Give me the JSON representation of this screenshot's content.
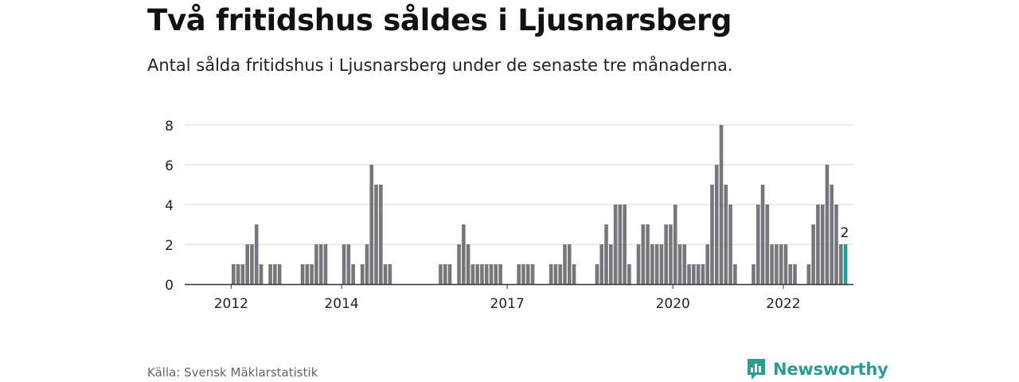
{
  "header": {
    "title": "Två fritidshus såldes i Ljusnarsberg",
    "subtitle": "Antal sålda fritidshus i Ljusnarsberg under de senaste tre månaderna."
  },
  "footer": {
    "source": "Källa: Svensk Mäklarstatistik",
    "brand": "Newsworthy",
    "brand_icon": "newsworthy-logo-icon"
  },
  "colors": {
    "bar": "#76767c",
    "highlight": "#1aa39a",
    "grid": "#d9d9d9",
    "axis": "#333333",
    "brand": "#2a9d94"
  },
  "chart_data": {
    "type": "bar",
    "title": "",
    "xlabel": "",
    "ylabel": "",
    "ylim": [
      0,
      8
    ],
    "yticks": [
      0,
      2,
      4,
      6,
      8
    ],
    "xticks": [
      "2012",
      "2014",
      "2017",
      "2020",
      "2022"
    ],
    "grid": true,
    "highlight_label": "2",
    "start_month": "2011-10",
    "values": [
      0,
      0,
      0,
      1,
      1,
      1,
      2,
      2,
      3,
      1,
      0,
      1,
      1,
      1,
      0,
      0,
      0,
      0,
      1,
      1,
      1,
      2,
      2,
      2,
      0,
      0,
      0,
      2,
      2,
      1,
      0,
      1,
      2,
      6,
      5,
      5,
      1,
      1,
      0,
      0,
      0,
      0,
      0,
      0,
      0,
      0,
      0,
      0,
      1,
      1,
      1,
      0,
      2,
      3,
      2,
      1,
      1,
      1,
      1,
      1,
      1,
      1,
      0,
      0,
      0,
      1,
      1,
      1,
      1,
      0,
      0,
      0,
      1,
      1,
      1,
      2,
      2,
      1,
      0,
      0,
      0,
      0,
      1,
      2,
      3,
      2,
      4,
      4,
      4,
      1,
      0,
      2,
      3,
      3,
      2,
      2,
      2,
      3,
      3,
      4,
      2,
      2,
      1,
      1,
      1,
      1,
      2,
      5,
      6,
      8,
      5,
      4,
      1,
      0,
      0,
      0,
      1,
      4,
      5,
      4,
      2,
      2,
      2,
      2,
      1,
      1,
      0,
      0,
      1,
      3,
      4,
      4,
      6,
      5,
      4,
      2,
      2
    ]
  }
}
